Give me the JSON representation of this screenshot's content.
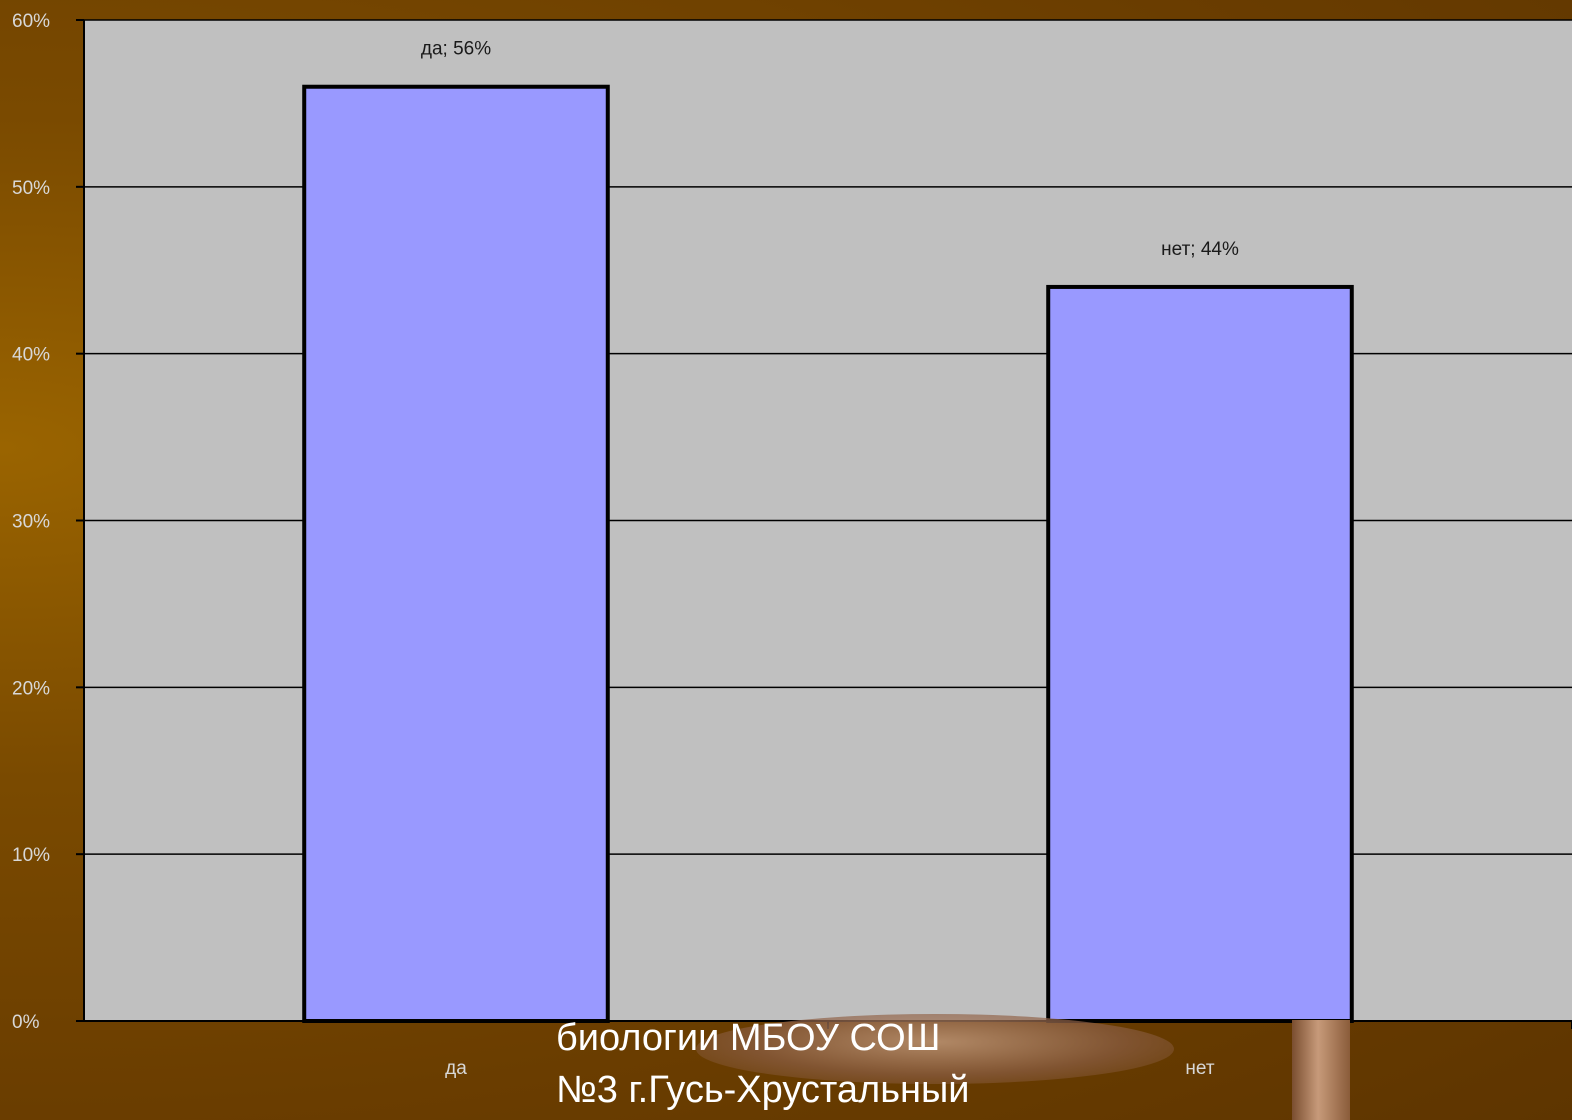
{
  "chart_data": {
    "type": "bar",
    "categories": [
      "да",
      "нет"
    ],
    "values": [
      56,
      44
    ],
    "data_labels": [
      "да; 56%",
      "нет; 44%"
    ],
    "y_ticks": [
      "0%",
      "10%",
      "20%",
      "30%",
      "40%",
      "50%",
      "60%"
    ],
    "ylim": [
      0,
      60
    ],
    "y_unit": "%",
    "grid": true,
    "legend": "none",
    "colors": {
      "bar_fill": "#9999ff",
      "bar_stroke": "#000000",
      "plot_background": "#c0c0c0",
      "gridline": "#000000"
    }
  },
  "overlay_text": {
    "line_1": "биологии МБОУ СОШ",
    "line_2": "№3 г.Гусь-Хрустальный"
  }
}
